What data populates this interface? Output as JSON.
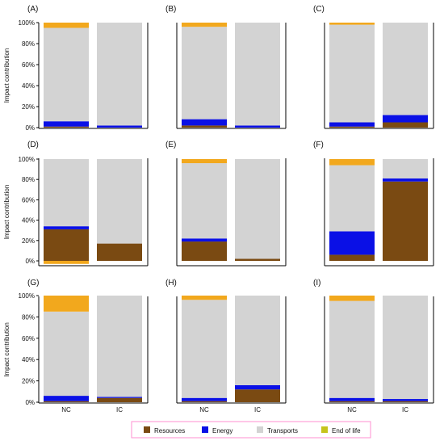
{
  "figure": {
    "ylabel": "Impact contribution",
    "legend": {
      "placement": "bottom-center",
      "items": [
        {
          "label": "Resources",
          "color": "#7a4a12"
        },
        {
          "label": "Energy",
          "color": "#0a10e6"
        },
        {
          "label": "Transports",
          "color": "#d3d3d3"
        },
        {
          "label": "End of life",
          "color": "#c6c41c"
        }
      ]
    },
    "colors": {
      "resources": "#7a4a12",
      "energy": "#0a10e6",
      "transports": "#d3d3d3",
      "end_of_life": "#f2a81d",
      "end_of_life_legend": "#c6c41c",
      "overlay": "#ff0000",
      "highlight": "#ffc7e6"
    }
  },
  "chart_data": [
    {
      "panel": "(A)",
      "type": "bar",
      "stacked": true,
      "categories": [
        "NC",
        "IC"
      ],
      "ylim": [
        0,
        100
      ],
      "yticks": [
        "0%",
        "20%",
        "40%",
        "60%",
        "80%",
        "100%"
      ],
      "series": [
        {
          "name": "Resources",
          "values": [
            1,
            0
          ]
        },
        {
          "name": "Energy",
          "values": [
            5,
            2
          ]
        },
        {
          "name": "Transports",
          "values": [
            89,
            98
          ]
        },
        {
          "name": "End of life",
          "values": [
            5,
            0
          ]
        }
      ]
    },
    {
      "panel": "(B)",
      "type": "bar",
      "stacked": true,
      "categories": [
        "NC",
        "IC"
      ],
      "ylim": [
        0,
        100
      ],
      "series": [
        {
          "name": "Resources",
          "values": [
            2,
            0
          ]
        },
        {
          "name": "Energy",
          "values": [
            6,
            2
          ]
        },
        {
          "name": "Transports",
          "values": [
            88,
            98
          ]
        },
        {
          "name": "End of life",
          "values": [
            4,
            0
          ]
        }
      ]
    },
    {
      "panel": "(C)",
      "type": "bar",
      "stacked": true,
      "categories": [
        "NC",
        "IC"
      ],
      "ylim": [
        0,
        100
      ],
      "series": [
        {
          "name": "Resources",
          "values": [
            1,
            5
          ]
        },
        {
          "name": "Energy",
          "values": [
            4,
            7
          ]
        },
        {
          "name": "Transports",
          "values": [
            93,
            88
          ]
        },
        {
          "name": "End of life",
          "values": [
            2,
            0
          ]
        }
      ]
    },
    {
      "panel": "(D)",
      "type": "bar",
      "stacked": true,
      "categories": [
        "NC",
        "IC"
      ],
      "ylim": [
        -5,
        100
      ],
      "yticks": [
        "0%",
        "20%",
        "40%",
        "60%",
        "80%",
        "100%"
      ],
      "series": [
        {
          "name": "Resources",
          "values": [
            31,
            17
          ]
        },
        {
          "name": "Energy",
          "values": [
            3,
            0
          ]
        },
        {
          "name": "Transports",
          "values": [
            66,
            83
          ]
        },
        {
          "name": "End of life",
          "values": [
            -3,
            0
          ]
        }
      ]
    },
    {
      "panel": "(E)",
      "type": "bar",
      "stacked": true,
      "categories": [
        "NC",
        "IC"
      ],
      "ylim": [
        -5,
        100
      ],
      "series": [
        {
          "name": "Resources",
          "values": [
            19,
            2
          ]
        },
        {
          "name": "Energy",
          "values": [
            3,
            0
          ]
        },
        {
          "name": "Transports",
          "values": [
            74,
            98
          ]
        },
        {
          "name": "End of life",
          "values": [
            4,
            0
          ]
        }
      ]
    },
    {
      "panel": "(F)",
      "type": "bar",
      "stacked": true,
      "categories": [
        "NC",
        "IC"
      ],
      "ylim": [
        -5,
        100
      ],
      "series": [
        {
          "name": "Resources",
          "values": [
            6,
            78
          ]
        },
        {
          "name": "Energy",
          "values": [
            23,
            3
          ]
        },
        {
          "name": "Transports",
          "values": [
            65,
            19
          ]
        },
        {
          "name": "End of life",
          "values": [
            6,
            0
          ]
        }
      ]
    },
    {
      "panel": "(G)",
      "type": "bar",
      "stacked": true,
      "categories": [
        "NC",
        "IC"
      ],
      "ylim": [
        0,
        100
      ],
      "yticks": [
        "0%",
        "20%",
        "40%",
        "60%",
        "80%",
        "100%"
      ],
      "series": [
        {
          "name": "Resources",
          "values": [
            1,
            4
          ]
        },
        {
          "name": "Energy",
          "values": [
            5,
            1
          ]
        },
        {
          "name": "Transports",
          "values": [
            79,
            95
          ]
        },
        {
          "name": "End of life",
          "values": [
            15,
            0
          ]
        }
      ]
    },
    {
      "panel": "(H)",
      "type": "bar",
      "stacked": true,
      "categories": [
        "NC",
        "IC"
      ],
      "ylim": [
        0,
        100
      ],
      "series": [
        {
          "name": "Resources",
          "values": [
            1,
            12
          ]
        },
        {
          "name": "Energy",
          "values": [
            3,
            4
          ]
        },
        {
          "name": "Transports",
          "values": [
            92,
            84
          ]
        },
        {
          "name": "End of life",
          "values": [
            4,
            0
          ]
        }
      ]
    },
    {
      "panel": "(I)",
      "type": "bar",
      "stacked": true,
      "categories": [
        "NC",
        "IC"
      ],
      "ylim": [
        0,
        100
      ],
      "series": [
        {
          "name": "Resources",
          "values": [
            1,
            1
          ]
        },
        {
          "name": "Energy",
          "values": [
            3,
            2
          ]
        },
        {
          "name": "Transports",
          "values": [
            91,
            97
          ]
        },
        {
          "name": "End of life",
          "values": [
            5,
            0
          ]
        }
      ]
    }
  ]
}
